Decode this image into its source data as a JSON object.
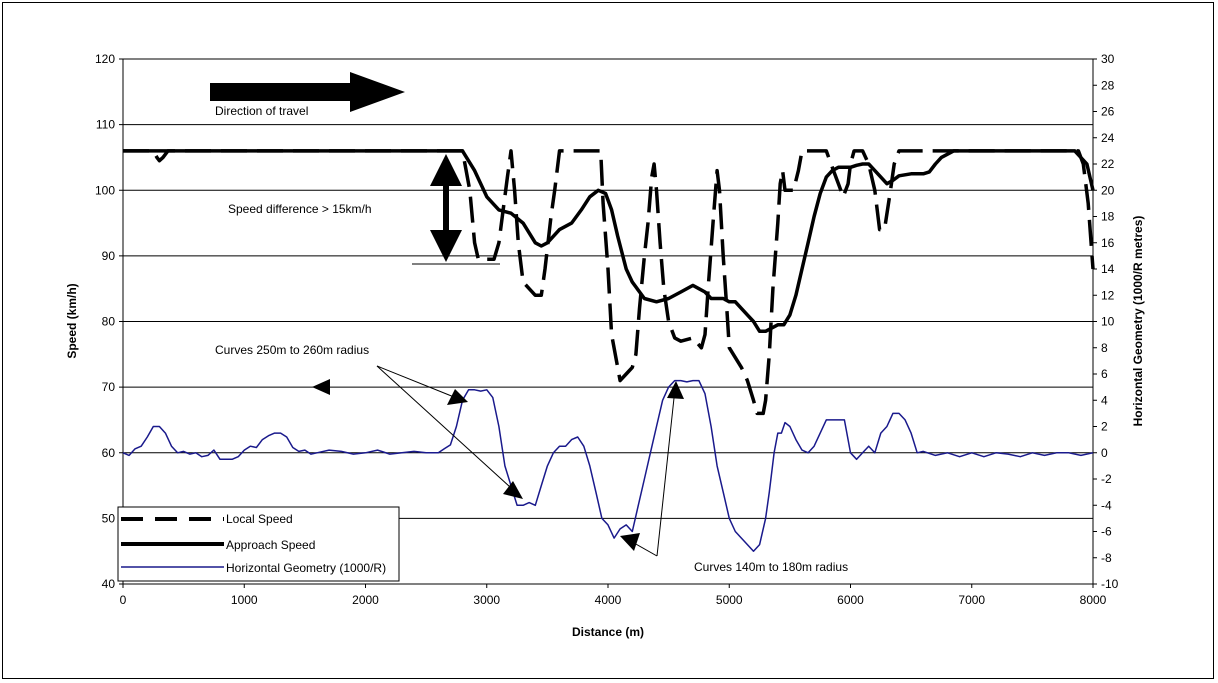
{
  "chart_data": {
    "type": "line",
    "xlabel": "Distance (m)",
    "ylabel": "Speed (km/h)",
    "y2label": "Horizontal Geometry (1000/R metres)",
    "xlim": [
      0,
      8000
    ],
    "ylim": [
      40,
      120
    ],
    "y2lim": [
      -10,
      30
    ],
    "x_ticks": [
      0,
      1000,
      2000,
      3000,
      4000,
      5000,
      6000,
      7000,
      8000
    ],
    "y_ticks": [
      40,
      50,
      60,
      70,
      80,
      90,
      100,
      110,
      120
    ],
    "y2_ticks": [
      -10,
      -8,
      -6,
      -4,
      -2,
      0,
      2,
      4,
      6,
      8,
      10,
      12,
      14,
      16,
      18,
      20,
      22,
      24,
      26,
      28,
      30
    ],
    "grid": "horizontal",
    "legend_position": "bottom-left",
    "series": [
      {
        "name": "Local Speed",
        "axis": "left",
        "style": "dashed",
        "color": "#000000",
        "points": [
          [
            0,
            106
          ],
          [
            250,
            106
          ],
          [
            280,
            105
          ],
          [
            300,
            104.5
          ],
          [
            330,
            105
          ],
          [
            370,
            106
          ],
          [
            1000,
            106
          ],
          [
            2000,
            106
          ],
          [
            2700,
            106
          ],
          [
            2800,
            106
          ],
          [
            2860,
            100
          ],
          [
            2900,
            92
          ],
          [
            2930,
            89.5
          ],
          [
            3000,
            89.5
          ],
          [
            3060,
            89.5
          ],
          [
            3100,
            92
          ],
          [
            3170,
            102
          ],
          [
            3200,
            106
          ],
          [
            3230,
            100
          ],
          [
            3260,
            92
          ],
          [
            3300,
            86
          ],
          [
            3350,
            85
          ],
          [
            3400,
            84
          ],
          [
            3450,
            84
          ],
          [
            3480,
            88
          ],
          [
            3530,
            96
          ],
          [
            3560,
            100
          ],
          [
            3600,
            106
          ],
          [
            3700,
            106
          ],
          [
            3800,
            106
          ],
          [
            3900,
            106
          ],
          [
            3940,
            106
          ],
          [
            3960,
            98
          ],
          [
            4000,
            88
          ],
          [
            4030,
            78
          ],
          [
            4080,
            73
          ],
          [
            4100,
            71
          ],
          [
            4150,
            72
          ],
          [
            4200,
            73
          ],
          [
            4230,
            75
          ],
          [
            4260,
            82
          ],
          [
            4300,
            90
          ],
          [
            4330,
            95
          ],
          [
            4360,
            102
          ],
          [
            4380,
            104
          ],
          [
            4400,
            100
          ],
          [
            4430,
            92
          ],
          [
            4460,
            85
          ],
          [
            4500,
            80
          ],
          [
            4550,
            77.5
          ],
          [
            4600,
            77
          ],
          [
            4700,
            77.5
          ],
          [
            4770,
            76
          ],
          [
            4800,
            78
          ],
          [
            4830,
            86
          ],
          [
            4870,
            96
          ],
          [
            4900,
            103
          ],
          [
            4920,
            100
          ],
          [
            4950,
            90
          ],
          [
            4980,
            82
          ],
          [
            5000,
            76
          ],
          [
            5100,
            73
          ],
          [
            5150,
            71
          ],
          [
            5200,
            68
          ],
          [
            5230,
            66
          ],
          [
            5280,
            66
          ],
          [
            5300,
            68
          ],
          [
            5330,
            75
          ],
          [
            5360,
            85
          ],
          [
            5400,
            95
          ],
          [
            5420,
            101
          ],
          [
            5440,
            103
          ],
          [
            5460,
            100
          ],
          [
            5500,
            100
          ],
          [
            5530,
            100
          ],
          [
            5570,
            103
          ],
          [
            5600,
            106
          ],
          [
            5700,
            106
          ],
          [
            5800,
            106
          ],
          [
            5860,
            103
          ],
          [
            5900,
            101
          ],
          [
            5940,
            99
          ],
          [
            5980,
            101
          ],
          [
            6000,
            104
          ],
          [
            6030,
            106
          ],
          [
            6100,
            106
          ],
          [
            6150,
            104
          ],
          [
            6200,
            100
          ],
          [
            6240,
            94
          ],
          [
            6280,
            94
          ],
          [
            6330,
            100
          ],
          [
            6360,
            104
          ],
          [
            6400,
            106
          ],
          [
            7000,
            106
          ],
          [
            7500,
            106
          ],
          [
            7800,
            106
          ],
          [
            7880,
            106
          ],
          [
            7920,
            104
          ],
          [
            7960,
            98
          ],
          [
            8000,
            88
          ]
        ]
      },
      {
        "name": "Approach Speed",
        "axis": "left",
        "style": "solid",
        "color": "#000000",
        "points": [
          [
            0,
            106
          ],
          [
            1000,
            106
          ],
          [
            2000,
            106
          ],
          [
            2700,
            106
          ],
          [
            2800,
            106
          ],
          [
            2900,
            103
          ],
          [
            3000,
            99
          ],
          [
            3100,
            97
          ],
          [
            3200,
            96.5
          ],
          [
            3300,
            95
          ],
          [
            3400,
            92
          ],
          [
            3450,
            91.5
          ],
          [
            3500,
            92
          ],
          [
            3600,
            94
          ],
          [
            3700,
            95
          ],
          [
            3780,
            97
          ],
          [
            3850,
            99
          ],
          [
            3920,
            100
          ],
          [
            3980,
            99.5
          ],
          [
            4030,
            97
          ],
          [
            4080,
            93
          ],
          [
            4150,
            88
          ],
          [
            4200,
            86
          ],
          [
            4300,
            83.5
          ],
          [
            4400,
            83
          ],
          [
            4500,
            83.5
          ],
          [
            4600,
            84.5
          ],
          [
            4700,
            85.5
          ],
          [
            4750,
            85
          ],
          [
            4800,
            84.5
          ],
          [
            4850,
            83.5
          ],
          [
            4900,
            83.5
          ],
          [
            4950,
            83.5
          ],
          [
            5000,
            83
          ],
          [
            5050,
            83
          ],
          [
            5100,
            82
          ],
          [
            5150,
            81
          ],
          [
            5200,
            80
          ],
          [
            5250,
            78.5
          ],
          [
            5300,
            78.5
          ],
          [
            5350,
            79
          ],
          [
            5400,
            79.5
          ],
          [
            5450,
            79.5
          ],
          [
            5500,
            81
          ],
          [
            5550,
            84
          ],
          [
            5600,
            88
          ],
          [
            5650,
            92
          ],
          [
            5700,
            96
          ],
          [
            5750,
            99.5
          ],
          [
            5800,
            102
          ],
          [
            5850,
            103
          ],
          [
            5900,
            103.5
          ],
          [
            5950,
            103.5
          ],
          [
            6000,
            103.5
          ],
          [
            6050,
            103.8
          ],
          [
            6100,
            104
          ],
          [
            6150,
            104
          ],
          [
            6200,
            103
          ],
          [
            6250,
            102
          ],
          [
            6300,
            101
          ],
          [
            6350,
            101.5
          ],
          [
            6400,
            102.2
          ],
          [
            6500,
            102.5
          ],
          [
            6600,
            102.5
          ],
          [
            6650,
            102.8
          ],
          [
            6700,
            104
          ],
          [
            6750,
            105
          ],
          [
            6850,
            106
          ],
          [
            7000,
            106
          ],
          [
            7500,
            106
          ],
          [
            7850,
            106
          ],
          [
            7950,
            104
          ],
          [
            8000,
            100
          ]
        ]
      },
      {
        "name": "Horizontal Geometry (1000/R)",
        "axis": "right",
        "style": "solid",
        "color": "#1a1a8c",
        "points": [
          [
            0,
            0
          ],
          [
            50,
            -0.2
          ],
          [
            100,
            0.3
          ],
          [
            150,
            0.5
          ],
          [
            200,
            1.2
          ],
          [
            250,
            2
          ],
          [
            300,
            2
          ],
          [
            350,
            1.5
          ],
          [
            400,
            0.5
          ],
          [
            450,
            0
          ],
          [
            500,
            0.1
          ],
          [
            550,
            -0.1
          ],
          [
            600,
            0
          ],
          [
            650,
            -0.3
          ],
          [
            700,
            -0.2
          ],
          [
            750,
            0.2
          ],
          [
            800,
            -0.5
          ],
          [
            850,
            -0.5
          ],
          [
            900,
            -0.5
          ],
          [
            950,
            -0.3
          ],
          [
            1000,
            0.2
          ],
          [
            1050,
            0.5
          ],
          [
            1100,
            0.4
          ],
          [
            1150,
            1
          ],
          [
            1200,
            1.3
          ],
          [
            1250,
            1.5
          ],
          [
            1300,
            1.5
          ],
          [
            1350,
            1.2
          ],
          [
            1400,
            0.4
          ],
          [
            1450,
            0.1
          ],
          [
            1500,
            0.2
          ],
          [
            1550,
            -0.1
          ],
          [
            1600,
            0
          ],
          [
            1700,
            0.2
          ],
          [
            1800,
            0.1
          ],
          [
            1900,
            -0.1
          ],
          [
            2000,
            0
          ],
          [
            2100,
            0.2
          ],
          [
            2200,
            -0.1
          ],
          [
            2300,
            0
          ],
          [
            2400,
            0.1
          ],
          [
            2500,
            0
          ],
          [
            2600,
            0
          ],
          [
            2650,
            0.3
          ],
          [
            2700,
            0.6
          ],
          [
            2750,
            2
          ],
          [
            2800,
            4
          ],
          [
            2850,
            4.8
          ],
          [
            2900,
            4.8
          ],
          [
            2950,
            4.7
          ],
          [
            3000,
            4.8
          ],
          [
            3050,
            4.2
          ],
          [
            3100,
            2
          ],
          [
            3150,
            -1
          ],
          [
            3200,
            -2.5
          ],
          [
            3250,
            -4
          ],
          [
            3300,
            -4
          ],
          [
            3350,
            -3.8
          ],
          [
            3400,
            -4
          ],
          [
            3450,
            -2.5
          ],
          [
            3500,
            -1
          ],
          [
            3550,
            0
          ],
          [
            3600,
            0.5
          ],
          [
            3650,
            0.5
          ],
          [
            3700,
            1
          ],
          [
            3750,
            1.2
          ],
          [
            3800,
            0.5
          ],
          [
            3850,
            -1
          ],
          [
            3900,
            -3
          ],
          [
            3950,
            -5
          ],
          [
            4000,
            -5.5
          ],
          [
            4050,
            -6.5
          ],
          [
            4100,
            -5.8
          ],
          [
            4150,
            -5.5
          ],
          [
            4200,
            -6
          ],
          [
            4250,
            -4
          ],
          [
            4300,
            -2
          ],
          [
            4350,
            0
          ],
          [
            4400,
            2
          ],
          [
            4450,
            4
          ],
          [
            4500,
            5
          ],
          [
            4550,
            5.5
          ],
          [
            4600,
            5.5
          ],
          [
            4650,
            5.4
          ],
          [
            4700,
            5.5
          ],
          [
            4750,
            5.5
          ],
          [
            4800,
            4.5
          ],
          [
            4850,
            2
          ],
          [
            4900,
            -1
          ],
          [
            4950,
            -3
          ],
          [
            5000,
            -5
          ],
          [
            5050,
            -6
          ],
          [
            5100,
            -6.5
          ],
          [
            5150,
            -7
          ],
          [
            5200,
            -7.5
          ],
          [
            5250,
            -7
          ],
          [
            5300,
            -5
          ],
          [
            5330,
            -3
          ],
          [
            5370,
            0
          ],
          [
            5400,
            1.5
          ],
          [
            5430,
            1.5
          ],
          [
            5460,
            2.3
          ],
          [
            5500,
            2
          ],
          [
            5550,
            1
          ],
          [
            5600,
            0.2
          ],
          [
            5650,
            0
          ],
          [
            5700,
            0.5
          ],
          [
            5750,
            1.5
          ],
          [
            5800,
            2.5
          ],
          [
            5850,
            2.5
          ],
          [
            5900,
            2.5
          ],
          [
            5950,
            2.5
          ],
          [
            6000,
            0
          ],
          [
            6050,
            -0.5
          ],
          [
            6100,
            0
          ],
          [
            6150,
            0.5
          ],
          [
            6200,
            0
          ],
          [
            6250,
            1.5
          ],
          [
            6300,
            2
          ],
          [
            6350,
            3
          ],
          [
            6400,
            3
          ],
          [
            6450,
            2.5
          ],
          [
            6500,
            1.5
          ],
          [
            6550,
            0
          ],
          [
            6600,
            0.1
          ],
          [
            6700,
            -0.2
          ],
          [
            6800,
            0
          ],
          [
            6900,
            -0.3
          ],
          [
            7000,
            0
          ],
          [
            7100,
            -0.3
          ],
          [
            7200,
            0
          ],
          [
            7300,
            -0.1
          ],
          [
            7400,
            -0.3
          ],
          [
            7500,
            0
          ],
          [
            7600,
            -0.2
          ],
          [
            7700,
            0
          ],
          [
            7800,
            0
          ],
          [
            7900,
            -0.2
          ],
          [
            8000,
            0
          ]
        ]
      }
    ],
    "annotations": [
      {
        "text": "Direction of travel"
      },
      {
        "text": "Speed difference > 15km/h"
      },
      {
        "text": "Curves 250m to 260m radius"
      },
      {
        "text": "Curves 140m to 180m radius"
      }
    ]
  }
}
